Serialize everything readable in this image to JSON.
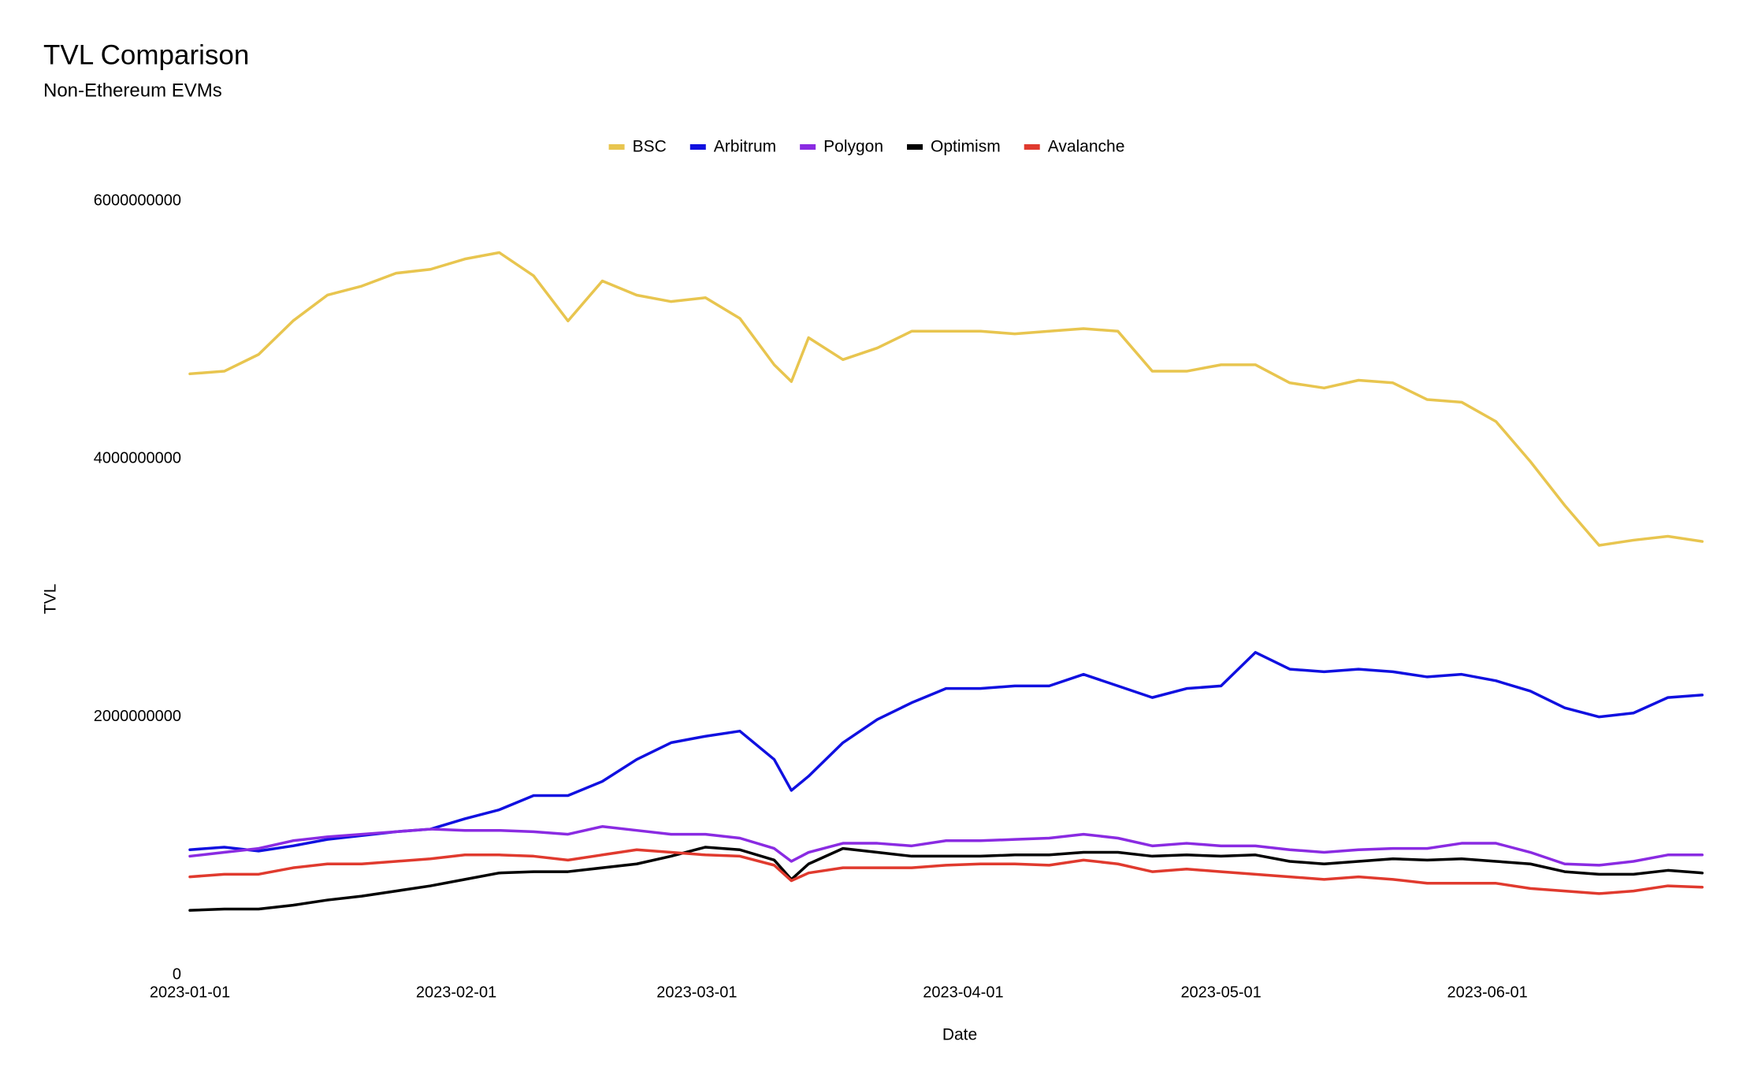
{
  "chart_data": {
    "type": "line",
    "title": "TVL Comparison",
    "subtitle": "Non-Ethereum EVMs",
    "x_label": "Date",
    "y_label": "TVL",
    "grid": false,
    "legend": "top",
    "x": [
      "2023-01-01",
      "2023-01-05",
      "2023-01-09",
      "2023-01-13",
      "2023-01-17",
      "2023-01-21",
      "2023-01-25",
      "2023-01-29",
      "2023-02-02",
      "2023-02-06",
      "2023-02-10",
      "2023-02-14",
      "2023-02-18",
      "2023-02-22",
      "2023-02-26",
      "2023-03-02",
      "2023-03-06",
      "2023-03-10",
      "2023-03-12",
      "2023-03-14",
      "2023-03-18",
      "2023-03-22",
      "2023-03-26",
      "2023-03-30",
      "2023-04-03",
      "2023-04-07",
      "2023-04-11",
      "2023-04-15",
      "2023-04-19",
      "2023-04-23",
      "2023-04-27",
      "2023-05-01",
      "2023-05-05",
      "2023-05-09",
      "2023-05-13",
      "2023-05-17",
      "2023-05-21",
      "2023-05-25",
      "2023-05-29",
      "2023-06-02",
      "2023-06-06",
      "2023-06-10",
      "2023-06-14",
      "2023-06-18",
      "2023-06-22",
      "2023-06-26"
    ],
    "xlim": [
      "2023-01-01",
      "2023-06-29"
    ],
    "xticks": [
      "2023-01-01",
      "2023-02-01",
      "2023-03-01",
      "2023-04-01",
      "2023-05-01",
      "2023-06-01"
    ],
    "ylim": [
      0,
      6000000000
    ],
    "yticks": [
      0,
      2000000000,
      4000000000,
      6000000000
    ],
    "series": [
      {
        "name": "BSC",
        "color": "#e8c54f",
        "values": [
          4660000000,
          4680000000,
          4810000000,
          5070000000,
          5270000000,
          5340000000,
          5440000000,
          5470000000,
          5550000000,
          5600000000,
          5420000000,
          5070000000,
          5380000000,
          5270000000,
          5220000000,
          5250000000,
          5090000000,
          4730000000,
          4600000000,
          4940000000,
          4770000000,
          4860000000,
          4990000000,
          4990000000,
          4990000000,
          4970000000,
          4990000000,
          5010000000,
          4990000000,
          4680000000,
          4680000000,
          4730000000,
          4730000000,
          4590000000,
          4550000000,
          4610000000,
          4590000000,
          4460000000,
          4440000000,
          4290000000,
          3980000000,
          3640000000,
          3330000000,
          3370000000,
          3400000000,
          3360000000
        ]
      },
      {
        "name": "Arbitrum",
        "color": "#1010e0",
        "values": [
          970000000,
          990000000,
          960000000,
          1000000000,
          1050000000,
          1080000000,
          1110000000,
          1130000000,
          1210000000,
          1280000000,
          1390000000,
          1390000000,
          1500000000,
          1670000000,
          1800000000,
          1850000000,
          1890000000,
          1670000000,
          1430000000,
          1540000000,
          1800000000,
          1980000000,
          2110000000,
          2220000000,
          2220000000,
          2240000000,
          2240000000,
          2330000000,
          2240000000,
          2150000000,
          2220000000,
          2240000000,
          2500000000,
          2370000000,
          2350000000,
          2370000000,
          2350000000,
          2310000000,
          2330000000,
          2280000000,
          2200000000,
          2070000000,
          2000000000,
          2030000000,
          2150000000,
          2170000000
        ]
      },
      {
        "name": "Polygon",
        "color": "#8a2be2",
        "values": [
          920000000,
          950000000,
          980000000,
          1040000000,
          1070000000,
          1090000000,
          1110000000,
          1130000000,
          1120000000,
          1120000000,
          1110000000,
          1090000000,
          1150000000,
          1120000000,
          1090000000,
          1090000000,
          1060000000,
          980000000,
          880000000,
          950000000,
          1020000000,
          1020000000,
          1000000000,
          1040000000,
          1040000000,
          1050000000,
          1060000000,
          1090000000,
          1060000000,
          1000000000,
          1020000000,
          1000000000,
          1000000000,
          970000000,
          950000000,
          970000000,
          980000000,
          980000000,
          1020000000,
          1020000000,
          950000000,
          860000000,
          850000000,
          880000000,
          930000000,
          930000000
        ]
      },
      {
        "name": "Optimism",
        "color": "#000000",
        "values": [
          500000000,
          510000000,
          510000000,
          540000000,
          580000000,
          610000000,
          650000000,
          690000000,
          740000000,
          790000000,
          800000000,
          800000000,
          830000000,
          860000000,
          920000000,
          990000000,
          970000000,
          890000000,
          740000000,
          860000000,
          980000000,
          950000000,
          920000000,
          920000000,
          920000000,
          930000000,
          930000000,
          950000000,
          950000000,
          920000000,
          930000000,
          920000000,
          930000000,
          880000000,
          860000000,
          880000000,
          900000000,
          890000000,
          900000000,
          880000000,
          860000000,
          800000000,
          780000000,
          780000000,
          810000000,
          790000000
        ]
      },
      {
        "name": "Avalanche",
        "color": "#e03a2e",
        "values": [
          760000000,
          780000000,
          780000000,
          830000000,
          860000000,
          860000000,
          880000000,
          900000000,
          930000000,
          930000000,
          920000000,
          890000000,
          930000000,
          970000000,
          950000000,
          930000000,
          920000000,
          850000000,
          730000000,
          790000000,
          830000000,
          830000000,
          830000000,
          850000000,
          860000000,
          860000000,
          850000000,
          890000000,
          860000000,
          800000000,
          820000000,
          800000000,
          780000000,
          760000000,
          740000000,
          760000000,
          740000000,
          710000000,
          710000000,
          710000000,
          670000000,
          650000000,
          630000000,
          650000000,
          690000000,
          680000000
        ]
      }
    ]
  }
}
